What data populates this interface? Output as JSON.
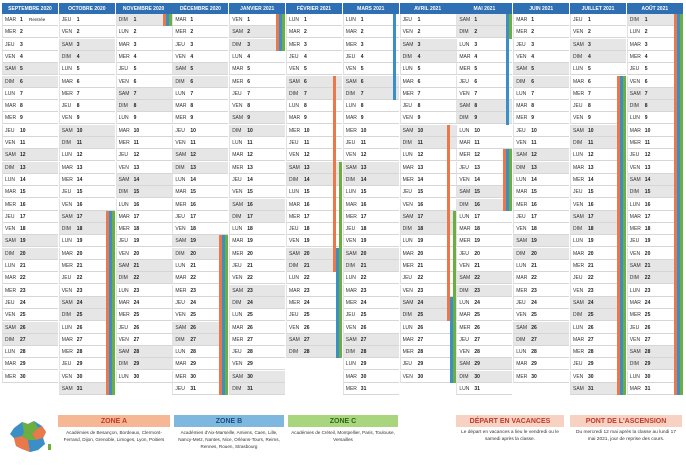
{
  "calendar": {
    "months": [
      {
        "name": "SEPTEMBRE 2020",
        "start_dow": 1,
        "days": 30,
        "notes": {
          "1": "Rentrée"
        }
      },
      {
        "name": "OCTOBRE 2020",
        "start_dow": 3,
        "days": 31,
        "notes": {}
      },
      {
        "name": "NOVEMBRE 2020",
        "start_dow": 6,
        "days": 30,
        "notes": {}
      },
      {
        "name": "DÉCEMBRE 2020",
        "start_dow": 1,
        "days": 31,
        "notes": {}
      },
      {
        "name": "JANVIER 2021",
        "start_dow": 4,
        "days": 31,
        "notes": {}
      },
      {
        "name": "FÉVRIER 2021",
        "start_dow": 0,
        "days": 28,
        "notes": {}
      },
      {
        "name": "MARS 2021",
        "start_dow": 0,
        "days": 31,
        "notes": {}
      },
      {
        "name": "AVRIL 2021",
        "start_dow": 3,
        "days": 30,
        "notes": {}
      },
      {
        "name": "MAI 2021",
        "start_dow": 5,
        "days": 31,
        "notes": {}
      },
      {
        "name": "JUIN 2021",
        "start_dow": 1,
        "days": 30,
        "notes": {}
      },
      {
        "name": "JUILLET 2021",
        "start_dow": 3,
        "days": 31,
        "notes": {}
      },
      {
        "name": "AOÛT 2021",
        "start_dow": 6,
        "days": 31,
        "notes": {}
      }
    ],
    "day_names": [
      "LUN",
      "MAR",
      "MER",
      "JEU",
      "VEN",
      "SAM",
      "DIM"
    ],
    "holiday_bars": [
      {
        "month": 1,
        "from": 17,
        "to": 31,
        "zone": "A"
      },
      {
        "month": 1,
        "from": 17,
        "to": 31,
        "zone": "B"
      },
      {
        "month": 1,
        "from": 17,
        "to": 31,
        "zone": "C"
      },
      {
        "month": 2,
        "from": 1,
        "to": 1,
        "zone": "A"
      },
      {
        "month": 2,
        "from": 1,
        "to": 1,
        "zone": "B"
      },
      {
        "month": 2,
        "from": 1,
        "to": 1,
        "zone": "C"
      },
      {
        "month": 3,
        "from": 19,
        "to": 31,
        "zone": "A"
      },
      {
        "month": 3,
        "from": 19,
        "to": 31,
        "zone": "B"
      },
      {
        "month": 3,
        "from": 19,
        "to": 31,
        "zone": "C"
      },
      {
        "month": 4,
        "from": 1,
        "to": 3,
        "zone": "A"
      },
      {
        "month": 4,
        "from": 1,
        "to": 3,
        "zone": "B"
      },
      {
        "month": 4,
        "from": 1,
        "to": 3,
        "zone": "C"
      },
      {
        "month": 5,
        "from": 6,
        "to": 21,
        "zone": "A"
      },
      {
        "month": 5,
        "from": 13,
        "to": 28,
        "zone": "C"
      },
      {
        "month": 5,
        "from": 20,
        "to": 28,
        "zone": "B"
      },
      {
        "month": 6,
        "from": 1,
        "to": 7,
        "zone": "B"
      },
      {
        "month": 7,
        "from": 10,
        "to": 25,
        "zone": "A"
      },
      {
        "month": 7,
        "from": 17,
        "to": 30,
        "zone": "C"
      },
      {
        "month": 7,
        "from": 24,
        "to": 30,
        "zone": "B"
      },
      {
        "month": 8,
        "from": 1,
        "to": 2,
        "zone": "C"
      },
      {
        "month": 8,
        "from": 1,
        "to": 9,
        "zone": "B"
      },
      {
        "month": 8,
        "from": 12,
        "to": 16,
        "zone": "A"
      },
      {
        "month": 8,
        "from": 12,
        "to": 16,
        "zone": "B"
      },
      {
        "month": 8,
        "from": 12,
        "to": 16,
        "zone": "C"
      },
      {
        "month": 10,
        "from": 6,
        "to": 31,
        "zone": "A"
      },
      {
        "month": 10,
        "from": 6,
        "to": 31,
        "zone": "B"
      },
      {
        "month": 10,
        "from": 6,
        "to": 31,
        "zone": "C"
      },
      {
        "month": 11,
        "from": 1,
        "to": 31,
        "zone": "A"
      },
      {
        "month": 11,
        "from": 1,
        "to": 31,
        "zone": "B"
      },
      {
        "month": 11,
        "from": 1,
        "to": 31,
        "zone": "C"
      }
    ]
  },
  "legend": {
    "zones": [
      {
        "id": "A",
        "title": "ZONE A",
        "color": "#e9784a",
        "header_bg": "#f6b894",
        "text": "Académies de Besançon, Bordeaux, Clermont-Ferrand, Dijon, Grenoble, Limoges, Lyon, Poitiers"
      },
      {
        "id": "B",
        "title": "ZONE B",
        "color": "#3a8fc7",
        "header_bg": "#7fb8df",
        "text": "Académies d'Aix-Marseille, Amiens, Caen, Lille, Nancy-Metz, Nantes, Nice, Orléans-Tours, Reims, Rennes, Rouen, Strasbourg"
      },
      {
        "id": "C",
        "title": "ZONE C",
        "color": "#6cae3f",
        "header_bg": "#a9d57f",
        "text": "Académies de Créteil, Montpellier, Paris, Toulouse, Versailles"
      }
    ],
    "depart": {
      "title": "DÉPART EN VACANCES",
      "text": "Le départ en vacances a lieu le vendredi ou le samedi après la classe."
    },
    "pont": {
      "title": "PONT DE L'ASCENSION",
      "text": "Du mercredi 12 mai après la classe au lundi 17 mai 2021, jour de reprise des cours."
    }
  },
  "colors": {
    "header": "#2f6fb3",
    "weekend": "#e6e6e6"
  }
}
